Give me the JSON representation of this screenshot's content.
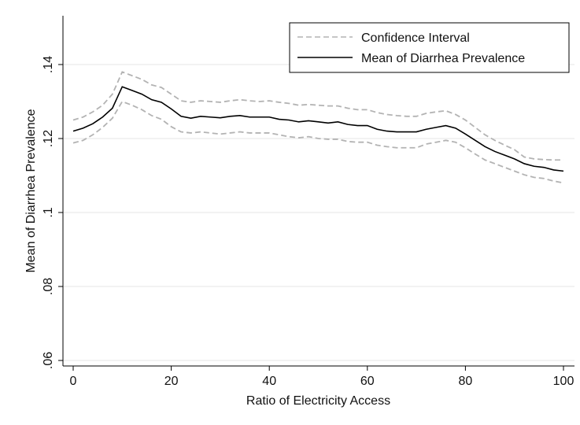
{
  "chart_data": {
    "type": "line",
    "title": "",
    "xlabel": "Ratio of Electricity Access",
    "ylabel": "Mean of Diarrhea Prevalence",
    "xlim": [
      0,
      100
    ],
    "ylim": [
      0.06,
      0.14
    ],
    "xticks": [
      0,
      20,
      40,
      60,
      80,
      100
    ],
    "xtick_labels": [
      "0",
      "20",
      "40",
      "60",
      "80",
      "100"
    ],
    "yticks": [
      0.06,
      0.08,
      0.1,
      0.12,
      0.14
    ],
    "ytick_labels": [
      ".06",
      ".08",
      ".1",
      ".12",
      ".14"
    ],
    "grid": "horizontal",
    "legend": {
      "placement": "top-right"
    },
    "x": [
      0,
      2,
      4,
      6,
      8,
      10,
      12,
      14,
      16,
      18,
      20,
      22,
      24,
      26,
      28,
      30,
      32,
      34,
      36,
      38,
      40,
      42,
      44,
      46,
      48,
      50,
      52,
      54,
      56,
      58,
      60,
      62,
      64,
      66,
      68,
      70,
      72,
      74,
      76,
      78,
      80,
      82,
      84,
      86,
      88,
      90,
      92,
      94,
      96,
      98,
      100
    ],
    "series": [
      {
        "name": "Confidence Interval",
        "style": "dashed",
        "color": "#b3b3b3",
        "upper": [
          0.125,
          0.1258,
          0.1272,
          0.129,
          0.132,
          0.138,
          0.137,
          0.136,
          0.1345,
          0.1338,
          0.132,
          0.1302,
          0.1298,
          0.1302,
          0.13,
          0.1298,
          0.1302,
          0.1305,
          0.1302,
          0.13,
          0.1302,
          0.1298,
          0.1295,
          0.129,
          0.1292,
          0.129,
          0.1288,
          0.1288,
          0.1282,
          0.1278,
          0.1278,
          0.127,
          0.1265,
          0.1262,
          0.126,
          0.126,
          0.1268,
          0.1272,
          0.1275,
          0.1265,
          0.125,
          0.123,
          0.121,
          0.1195,
          0.1182,
          0.117,
          0.115,
          0.1145,
          0.1143,
          0.1142,
          0.1142
        ],
        "lower": [
          0.1188,
          0.1195,
          0.121,
          0.123,
          0.1255,
          0.13,
          0.129,
          0.1278,
          0.1262,
          0.1252,
          0.1232,
          0.1218,
          0.1215,
          0.1218,
          0.1215,
          0.1212,
          0.1215,
          0.1218,
          0.1215,
          0.1215,
          0.1215,
          0.121,
          0.1205,
          0.1202,
          0.1205,
          0.12,
          0.1198,
          0.1198,
          0.1192,
          0.119,
          0.119,
          0.1182,
          0.1178,
          0.1175,
          0.1175,
          0.1175,
          0.1185,
          0.119,
          0.1195,
          0.119,
          0.1175,
          0.1158,
          0.1142,
          0.1132,
          0.1122,
          0.1112,
          0.1102,
          0.1095,
          0.1092,
          0.1085,
          0.108
        ]
      },
      {
        "name": "Mean of Diarrhea Prevalence",
        "style": "solid",
        "color": "#000000",
        "values": [
          0.122,
          0.1228,
          0.124,
          0.1258,
          0.1282,
          0.134,
          0.133,
          0.132,
          0.1305,
          0.1298,
          0.128,
          0.126,
          0.1255,
          0.126,
          0.1258,
          0.1256,
          0.126,
          0.1262,
          0.1258,
          0.1258,
          0.1258,
          0.1252,
          0.125,
          0.1245,
          0.1248,
          0.1245,
          0.1242,
          0.1245,
          0.1238,
          0.1235,
          0.1235,
          0.1225,
          0.122,
          0.1218,
          0.1218,
          0.1218,
          0.1225,
          0.123,
          0.1235,
          0.1228,
          0.1212,
          0.1195,
          0.1178,
          0.1165,
          0.1155,
          0.1145,
          0.1132,
          0.1125,
          0.1122,
          0.1115,
          0.1112
        ]
      }
    ]
  }
}
